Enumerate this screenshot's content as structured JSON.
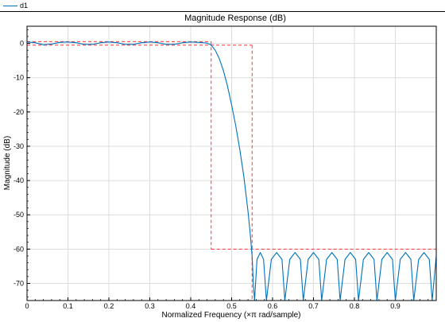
{
  "legend": {
    "entries": [
      {
        "name": "d1",
        "color": "#0072BD"
      }
    ]
  },
  "chart_data": {
    "type": "line",
    "title": "Magnitude Response (dB)",
    "xlabel": "Normalized Frequency (×π rad/sample)",
    "ylabel": "Magnitude (dB)",
    "xlim": [
      0,
      1
    ],
    "ylim": [
      -75,
      5
    ],
    "xticks": [
      0,
      0.1,
      0.2,
      0.3,
      0.4,
      0.5,
      0.6,
      0.7,
      0.8,
      0.9
    ],
    "xtick_labels": [
      "0",
      "0.1",
      "0.2",
      "0.3",
      "0.4",
      "0.5",
      "0.6",
      "0.7",
      "0.8",
      "0.9"
    ],
    "yticks": [
      0,
      -10,
      -20,
      -30,
      -40,
      -50,
      -60,
      -70
    ],
    "ytick_labels": [
      "0",
      "-10",
      "-20",
      "-30",
      "-40",
      "-50",
      "-60",
      "-70"
    ],
    "grid": true,
    "series": [
      {
        "name": "d1",
        "color": "#0072BD",
        "x": [
          0.0,
          0.02,
          0.04,
          0.06,
          0.08,
          0.1,
          0.12,
          0.14,
          0.16,
          0.18,
          0.2,
          0.22,
          0.24,
          0.26,
          0.28,
          0.3,
          0.32,
          0.34,
          0.36,
          0.38,
          0.4,
          0.42,
          0.44,
          0.45,
          0.46,
          0.47,
          0.48,
          0.49,
          0.5,
          0.51,
          0.52,
          0.53,
          0.54,
          0.545,
          0.55,
          0.553,
          0.556,
          0.562,
          0.57,
          0.578,
          0.585,
          0.597,
          0.61,
          0.623,
          0.63,
          0.642,
          0.655,
          0.668,
          0.675,
          0.687,
          0.7,
          0.713,
          0.72,
          0.732,
          0.745,
          0.758,
          0.765,
          0.777,
          0.79,
          0.803,
          0.81,
          0.822,
          0.835,
          0.848,
          0.855,
          0.867,
          0.88,
          0.893,
          0.9,
          0.912,
          0.925,
          0.938,
          0.945,
          0.957,
          0.97,
          0.983,
          0.99,
          1.0
        ],
        "y": [
          0.4,
          0.2,
          -0.4,
          -0.2,
          0.3,
          0.4,
          0.2,
          -0.3,
          -0.3,
          0.2,
          0.4,
          0.2,
          -0.3,
          -0.3,
          0.2,
          0.4,
          0.2,
          -0.3,
          -0.3,
          0.2,
          0.4,
          0.3,
          0.1,
          -0.5,
          -2,
          -4.5,
          -8,
          -12.5,
          -18,
          -24,
          -31,
          -39,
          -49,
          -55,
          -62,
          -70,
          -75,
          -63,
          -61,
          -63,
          -75,
          -63,
          -61,
          -63,
          -75,
          -63,
          -61,
          -63,
          -75,
          -63,
          -61,
          -63,
          -75,
          -63,
          -61,
          -63,
          -75,
          -63,
          -61,
          -63,
          -75,
          -63,
          -61,
          -63,
          -75,
          -63,
          -61,
          -63,
          -75,
          -63,
          -61,
          -63,
          -75,
          -63,
          -61,
          -63,
          -75,
          -62
        ]
      }
    ],
    "masks": {
      "color": "#FF3333",
      "passband_upper": {
        "x": [
          0,
          0.45
        ],
        "y": [
          0.5,
          0.5
        ]
      },
      "passband_lower": {
        "x": [
          0,
          0.55
        ],
        "y": [
          -0.5,
          -0.5
        ]
      },
      "transition_left": {
        "x": [
          0.45,
          0.45
        ],
        "y": [
          0.5,
          -60
        ]
      },
      "transition_right": {
        "x": [
          0.55,
          0.55
        ],
        "y": [
          -0.5,
          -75
        ]
      },
      "stopband": {
        "x": [
          0.45,
          1.0
        ],
        "y": [
          -60,
          -60
        ]
      }
    }
  }
}
